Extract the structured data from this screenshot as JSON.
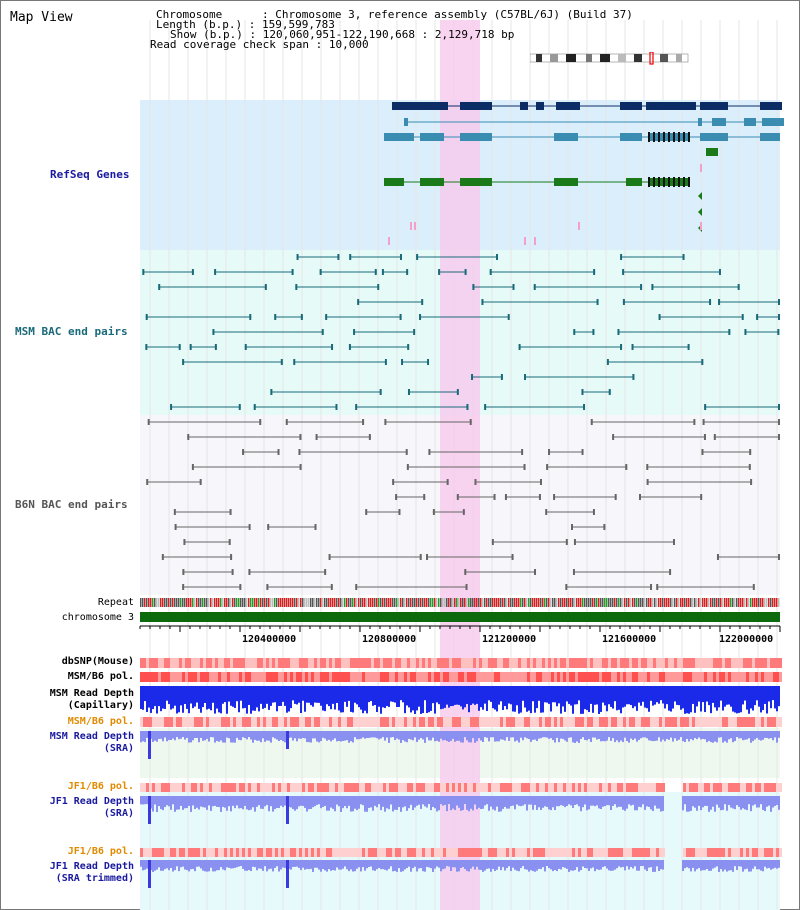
{
  "title": "Map View",
  "info": {
    "chromosome_key": "Chromosome",
    "chromosome_val": "Chromosome 3, reference assembly (C57BL/6J) (Build 37)",
    "length_key": "Length (b.p.)",
    "length_val": "159,599,783",
    "show_key": "Show (b.p.)",
    "show_val": "120,060,951-122,190,668 : 2,129,718 bp",
    "coverage_key": "Read coverage check span",
    "coverage_val": "10,000"
  },
  "tracks": {
    "refseq": "RefSeq Genes",
    "msm_bac": "MSM BAC end pairs",
    "b6n_bac": "B6N BAC end pairs",
    "repeat": "Repeat",
    "chromosome": "chromosome 3"
  },
  "axis_ticks": [
    "120400000",
    "120800000",
    "121200000",
    "121600000",
    "122000000"
  ],
  "data_tracks": [
    {
      "id": "dbsnp",
      "line1": "dbSNP(Mouse)",
      "line2": "",
      "color": "#000000"
    },
    {
      "id": "msm_b6_pol",
      "line1": "MSM/B6 pol.",
      "line2": "",
      "color": "#000000"
    },
    {
      "id": "msm_depth_cap",
      "line1": "MSM Read Depth",
      "line2": "(Capillary)",
      "color": "#000000"
    },
    {
      "id": "msm_b6_pol2",
      "line1": "MSM/B6 pol.",
      "line2": "",
      "color": "#e08a00"
    },
    {
      "id": "msm_depth_sra",
      "line1": "MSM Read Depth",
      "line2": "(SRA)",
      "color": "#1a1aa0"
    },
    {
      "id": "jf1_b6_pol",
      "line1": "JF1/B6 pol.",
      "line2": "",
      "color": "#e08a00"
    },
    {
      "id": "jf1_depth_sra",
      "line1": "JF1 Read Depth",
      "line2": "(SRA)",
      "color": "#1a1aa0"
    },
    {
      "id": "jf1_b6_pol2",
      "line1": "JF1/B6 pol.",
      "line2": "",
      "color": "#e08a00"
    },
    {
      "id": "jf1_depth_trim",
      "line1": "JF1 Read Depth",
      "line2": "(SRA trimmed)",
      "color": "#1a1aa0"
    }
  ],
  "colors": {
    "refseq_bg": "#daeffb",
    "msm_bg": "#e6faf8",
    "b6n_bg": "#f7f7fb",
    "highlight": "#f7c9ee",
    "refseq_label": "#1a1aa0",
    "msm_label": "#1a6a7a",
    "b6n_label": "#555555"
  }
}
